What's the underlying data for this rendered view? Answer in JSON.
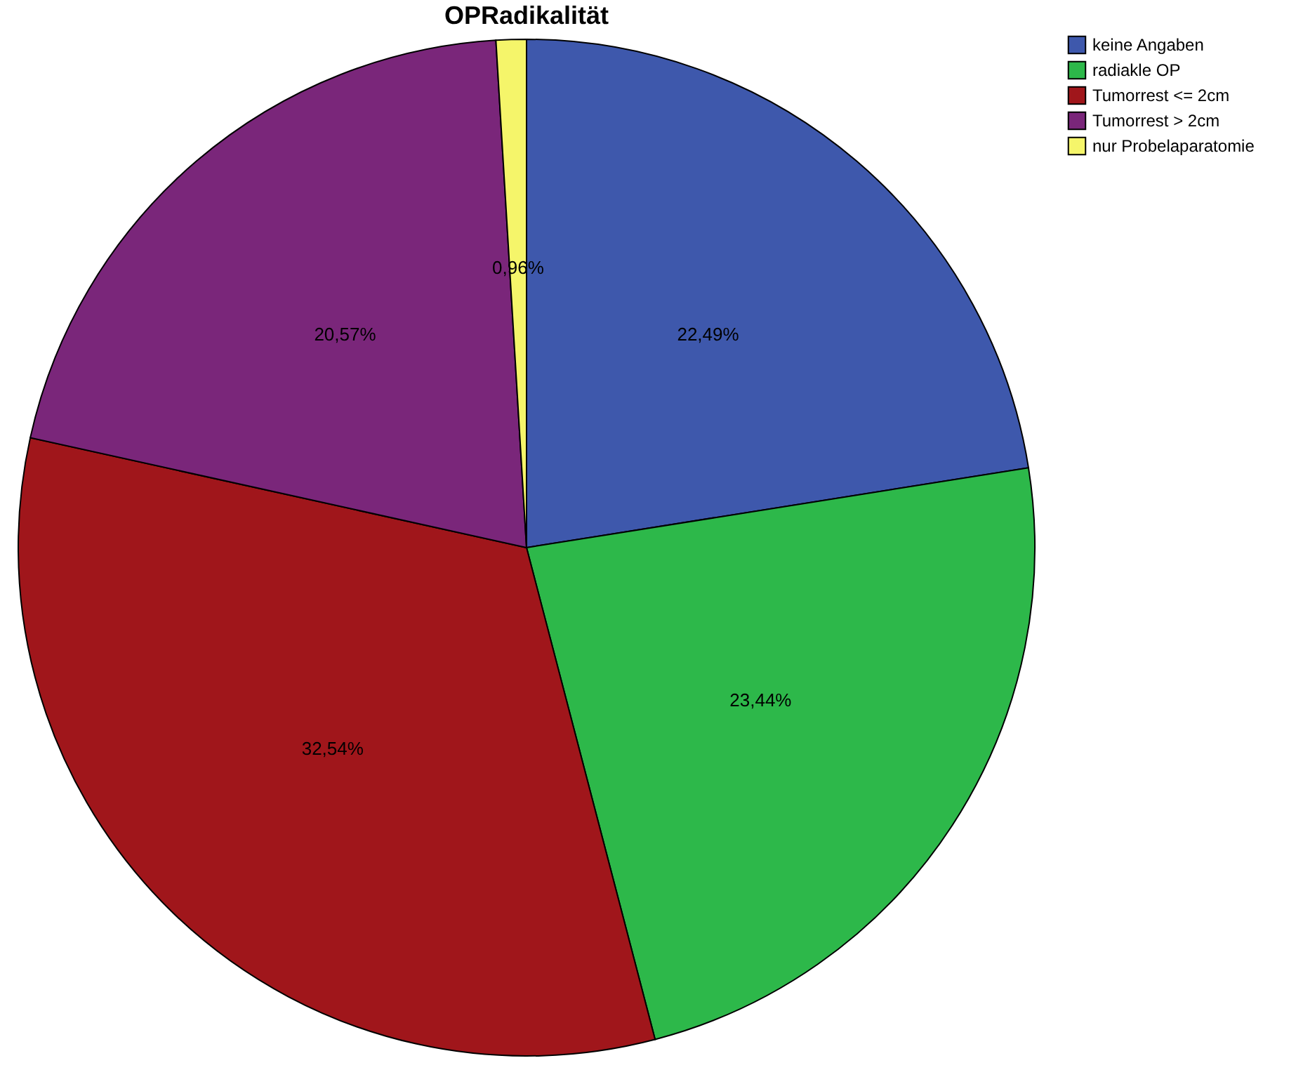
{
  "chart_data": {
    "type": "pie",
    "title": "OPRadikalität",
    "categories": [
      "keine Angaben",
      "radiakle OP",
      "Tumorrest <= 2cm",
      "Tumorrest > 2cm",
      "nur Probelaparatomie"
    ],
    "values": [
      22.49,
      23.44,
      32.54,
      20.57,
      0.96
    ],
    "value_labels": [
      "22,49%",
      "23,44%",
      "32,54%",
      "20,57%",
      "0,96%"
    ],
    "colors": [
      "#3e58ac",
      "#2db84a",
      "#a0161b",
      "#7a267a",
      "#f5f56a"
    ],
    "legend": "top right"
  }
}
